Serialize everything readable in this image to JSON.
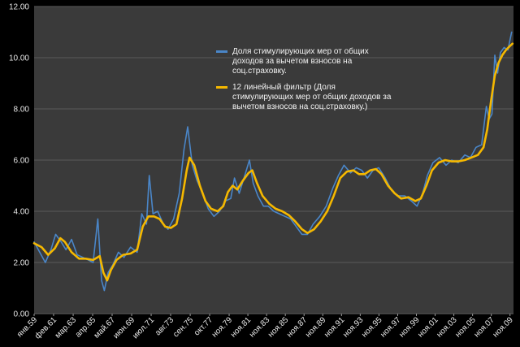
{
  "chart_data": {
    "type": "line",
    "title": "",
    "xlabel": "",
    "ylabel": "",
    "ylim": [
      0,
      12
    ],
    "y_ticks": [
      "0.00",
      "2.00",
      "4.00",
      "6.00",
      "8.00",
      "10.00",
      "12.00"
    ],
    "y_tick_values": [
      0,
      2,
      4,
      6,
      8,
      10,
      12
    ],
    "x_range": [
      1959.0,
      2010.2
    ],
    "x_tick_labels": [
      "янв.59",
      "фев.61",
      "мар.63",
      "апр.65",
      "май.67",
      "июн.69",
      "июл.71",
      "авг.73",
      "сен.75",
      "окт.77",
      "ноя.79",
      "ноя.81",
      "ноя.83",
      "ноя.85",
      "ноя.87",
      "ноя.89",
      "ноя.91",
      "ноя.93",
      "ноя.95",
      "ноя.97",
      "ноя.99",
      "ноя.01",
      "ноя.03",
      "ноя.05",
      "ноя.07",
      "ноя.09"
    ],
    "x_tick_values": [
      1959.0,
      1961.08,
      1963.17,
      1965.25,
      1967.33,
      1969.42,
      1971.5,
      1973.58,
      1975.67,
      1977.75,
      1979.83,
      1981.83,
      1983.83,
      1985.83,
      1987.83,
      1989.83,
      1991.83,
      1993.83,
      1995.83,
      1997.83,
      1999.83,
      2001.83,
      2003.83,
      2005.83,
      2007.83,
      2009.83
    ],
    "grid": true,
    "legend_position": "top-center",
    "background_color": "#000000",
    "plot_background": "#3a3a3a",
    "grid_color": "#5a5a5a",
    "series": [
      {
        "name": "Доля стимулирующих мер от общих доходов за вычетом  взносов на соц.страховку.",
        "color": "#4a86c8",
        "x": [
          1959.0,
          1959.6,
          1960.2,
          1960.8,
          1961.3,
          1961.9,
          1962.4,
          1963.0,
          1963.6,
          1964.2,
          1964.8,
          1965.3,
          1965.8,
          1966.2,
          1966.5,
          1966.9,
          1967.4,
          1968.0,
          1968.6,
          1969.3,
          1970.0,
          1970.5,
          1971.0,
          1971.3,
          1971.7,
          1972.2,
          1972.8,
          1973.3,
          1973.9,
          1974.5,
          1975.0,
          1975.4,
          1975.9,
          1976.4,
          1977.0,
          1977.6,
          1978.2,
          1978.8,
          1979.4,
          1980.0,
          1980.4,
          1980.9,
          1981.5,
          1982.0,
          1982.4,
          1982.9,
          1983.5,
          1984.0,
          1984.6,
          1985.2,
          1985.8,
          1986.4,
          1987.0,
          1987.6,
          1988.2,
          1988.8,
          1989.5,
          1990.2,
          1990.9,
          1991.5,
          1992.1,
          1992.8,
          1993.4,
          1994.0,
          1994.6,
          1995.2,
          1995.8,
          1996.5,
          1997.2,
          1997.9,
          1998.6,
          1999.3,
          1999.9,
          2000.5,
          2001.0,
          2001.6,
          2002.3,
          2003.0,
          2003.6,
          2004.3,
          2005.0,
          2005.6,
          2006.2,
          2006.8,
          2007.3,
          2007.6,
          2007.9,
          2008.2,
          2008.5,
          2008.8,
          2009.2,
          2009.6,
          2010.0
        ],
        "y": [
          2.8,
          2.4,
          2.0,
          2.5,
          3.1,
          2.8,
          2.5,
          2.9,
          2.3,
          2.2,
          2.1,
          2.0,
          3.7,
          1.3,
          0.9,
          1.6,
          1.9,
          2.4,
          2.2,
          2.6,
          2.4,
          3.9,
          3.5,
          5.4,
          3.9,
          4.0,
          3.5,
          3.3,
          3.7,
          4.7,
          6.4,
          7.3,
          5.8,
          5.2,
          4.7,
          4.1,
          3.8,
          4.0,
          4.4,
          4.5,
          5.3,
          4.7,
          5.4,
          6.0,
          5.1,
          4.6,
          4.2,
          4.2,
          4.0,
          3.9,
          3.8,
          3.7,
          3.4,
          3.1,
          3.1,
          3.5,
          3.8,
          4.2,
          4.9,
          5.4,
          5.8,
          5.5,
          5.7,
          5.6,
          5.3,
          5.6,
          5.7,
          5.3,
          4.8,
          4.6,
          4.6,
          4.4,
          4.2,
          4.7,
          5.4,
          5.9,
          6.1,
          5.8,
          6.0,
          5.9,
          6.2,
          6.1,
          6.5,
          6.6,
          8.1,
          7.6,
          7.8,
          10.1,
          9.4,
          10.2,
          10.4,
          10.3,
          11.0
        ]
      },
      {
        "name": "12 линейный фильтр (Доля стимулирующих мер от общих доходов за вычетом взносов на соц.страховку.)",
        "color": "#f5b800",
        "x": [
          1959.0,
          1959.8,
          1960.5,
          1961.2,
          1961.8,
          1962.3,
          1963.0,
          1963.8,
          1964.5,
          1965.3,
          1966.0,
          1966.4,
          1966.8,
          1967.2,
          1967.8,
          1968.5,
          1969.3,
          1970.0,
          1970.6,
          1971.2,
          1971.8,
          1972.4,
          1973.0,
          1973.6,
          1974.2,
          1974.8,
          1975.3,
          1975.6,
          1976.1,
          1976.7,
          1977.3,
          1977.9,
          1978.6,
          1979.2,
          1979.7,
          1980.2,
          1980.7,
          1981.3,
          1981.9,
          1982.3,
          1982.8,
          1983.4,
          1984.1,
          1984.8,
          1985.5,
          1986.2,
          1986.9,
          1987.6,
          1988.2,
          1988.9,
          1989.6,
          1990.3,
          1991.0,
          1991.7,
          1992.4,
          1993.1,
          1993.7,
          1994.3,
          1994.9,
          1995.5,
          1996.1,
          1996.8,
          1997.5,
          1998.2,
          1999.0,
          1999.7,
          2000.3,
          2000.9,
          2001.5,
          2002.2,
          2002.9,
          2003.6,
          2004.3,
          2005.0,
          2005.7,
          2006.4,
          2007.0,
          2007.4,
          2007.8,
          2008.2,
          2008.6,
          2009.0,
          2009.4,
          2009.8,
          2010.1
        ],
        "y": [
          2.75,
          2.6,
          2.3,
          2.55,
          2.95,
          2.8,
          2.4,
          2.15,
          2.15,
          2.1,
          2.25,
          1.6,
          1.3,
          1.7,
          2.1,
          2.3,
          2.35,
          2.5,
          3.4,
          3.8,
          3.8,
          3.7,
          3.4,
          3.35,
          3.5,
          4.5,
          5.6,
          6.1,
          5.8,
          5.0,
          4.4,
          4.1,
          4.0,
          4.2,
          4.75,
          5.0,
          4.85,
          5.2,
          5.5,
          5.6,
          5.1,
          4.6,
          4.3,
          4.1,
          4.0,
          3.85,
          3.6,
          3.3,
          3.15,
          3.3,
          3.6,
          4.0,
          4.6,
          5.3,
          5.55,
          5.6,
          5.45,
          5.45,
          5.6,
          5.65,
          5.45,
          5.0,
          4.7,
          4.5,
          4.55,
          4.4,
          4.5,
          5.0,
          5.6,
          5.9,
          6.0,
          5.95,
          5.95,
          6.0,
          6.1,
          6.2,
          6.5,
          7.2,
          8.3,
          9.3,
          9.8,
          10.1,
          10.3,
          10.45,
          10.55
        ]
      }
    ]
  }
}
